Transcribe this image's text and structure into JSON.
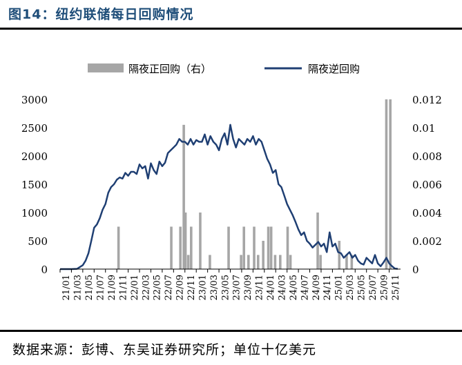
{
  "figure": {
    "title": "图14：纽约联储每日回购情况",
    "source": "数据来源：彭博、东吴证券研究所；单位十亿美元"
  },
  "chart_data": {
    "type": "bar+line",
    "legend": [
      {
        "label": "隔夜正回购（右）",
        "type": "bar",
        "color": "#a6a6a6"
      },
      {
        "label": "隔夜逆回购",
        "type": "line",
        "color": "#1f3f73"
      }
    ],
    "legend_position": "top",
    "x_ticks": [
      "21/01",
      "21/03",
      "21/05",
      "21/07",
      "21/09",
      "21/11",
      "22/01",
      "22/03",
      "22/05",
      "22/07",
      "22/09",
      "22/11",
      "23/01",
      "23/03",
      "23/05",
      "23/07",
      "23/09",
      "23/11",
      "24/01",
      "24/03",
      "24/05",
      "24/07",
      "24/09",
      "24/11",
      "25/01",
      "25/03",
      "25/05",
      "25/07",
      "25/09",
      "25/11"
    ],
    "y_left": {
      "min": 0,
      "max": 3000,
      "ticks": [
        0,
        500,
        1000,
        1500,
        2000,
        2500,
        3000
      ]
    },
    "y_right": {
      "min": 0,
      "max": 0.012,
      "ticks": [
        "0",
        "0.002",
        "0.004",
        "0.006",
        "0.008",
        "0.01",
        "0.012"
      ]
    },
    "grid": false,
    "series": [
      {
        "name": "隔夜逆回购",
        "axis": "left",
        "type": "line",
        "points": [
          [
            0,
            0
          ],
          [
            2,
            0
          ],
          [
            3,
            5
          ],
          [
            4,
            70
          ],
          [
            4.5,
            150
          ],
          [
            5,
            280
          ],
          [
            5.5,
            500
          ],
          [
            6,
            730
          ],
          [
            6.5,
            790
          ],
          [
            7,
            900
          ],
          [
            7.5,
            1050
          ],
          [
            8,
            1150
          ],
          [
            8.5,
            1350
          ],
          [
            9,
            1450
          ],
          [
            9.5,
            1500
          ],
          [
            10,
            1580
          ],
          [
            10.5,
            1620
          ],
          [
            11,
            1600
          ],
          [
            11.5,
            1700
          ],
          [
            12,
            1650
          ],
          [
            12.5,
            1720
          ],
          [
            13,
            1720
          ],
          [
            13.5,
            1680
          ],
          [
            14,
            1850
          ],
          [
            14.5,
            1780
          ],
          [
            15,
            1820
          ],
          [
            15.5,
            1600
          ],
          [
            16,
            1870
          ],
          [
            16.5,
            1750
          ],
          [
            17,
            1680
          ],
          [
            17.5,
            1900
          ],
          [
            18,
            1820
          ],
          [
            18.5,
            1880
          ],
          [
            19,
            2050
          ],
          [
            19.5,
            2100
          ],
          [
            20,
            2150
          ],
          [
            20.5,
            2200
          ],
          [
            21,
            2300
          ],
          [
            21.5,
            2250
          ],
          [
            22,
            2250
          ],
          [
            22.5,
            2200
          ],
          [
            23,
            2300
          ],
          [
            23.5,
            2200
          ],
          [
            24,
            2280
          ],
          [
            24.5,
            2250
          ],
          [
            25,
            2250
          ],
          [
            25.5,
            2380
          ],
          [
            26,
            2200
          ],
          [
            26.5,
            2350
          ],
          [
            27,
            2250
          ],
          [
            27.5,
            2200
          ],
          [
            28,
            2100
          ],
          [
            28.5,
            2300
          ],
          [
            29,
            2400
          ],
          [
            29.5,
            2200
          ],
          [
            30,
            2550
          ],
          [
            30.5,
            2300
          ],
          [
            31,
            2150
          ],
          [
            31.5,
            2300
          ],
          [
            32,
            2250
          ],
          [
            32.5,
            2200
          ],
          [
            33,
            2300
          ],
          [
            33.5,
            2250
          ],
          [
            34,
            2350
          ],
          [
            34.5,
            2200
          ],
          [
            35,
            2300
          ],
          [
            35.5,
            2250
          ],
          [
            36,
            2100
          ],
          [
            36.5,
            1950
          ],
          [
            37,
            1850
          ],
          [
            37.5,
            1700
          ],
          [
            38,
            1750
          ],
          [
            38.5,
            1500
          ],
          [
            39,
            1450
          ],
          [
            39.5,
            1300
          ],
          [
            40,
            1150
          ],
          [
            40.5,
            1050
          ],
          [
            41,
            950
          ],
          [
            41.5,
            830
          ],
          [
            42,
            700
          ],
          [
            42.5,
            600
          ],
          [
            43,
            650
          ],
          [
            43.5,
            500
          ],
          [
            44,
            450
          ],
          [
            44.5,
            380
          ],
          [
            45,
            430
          ],
          [
            45.5,
            480
          ],
          [
            46,
            400
          ],
          [
            46.5,
            450
          ],
          [
            47,
            300
          ],
          [
            47.5,
            650
          ],
          [
            48,
            400
          ],
          [
            48.5,
            450
          ],
          [
            49,
            300
          ],
          [
            49.5,
            280
          ],
          [
            50,
            200
          ],
          [
            50.5,
            250
          ],
          [
            51,
            300
          ],
          [
            51.5,
            200
          ],
          [
            52,
            250
          ],
          [
            52.5,
            150
          ],
          [
            53,
            100
          ],
          [
            53.5,
            80
          ],
          [
            54,
            200
          ],
          [
            54.5,
            150
          ],
          [
            55,
            100
          ],
          [
            55.5,
            250
          ],
          [
            56,
            100
          ],
          [
            56.5,
            50
          ],
          [
            57,
            120
          ],
          [
            57.5,
            200
          ],
          [
            58,
            100
          ],
          [
            58.5,
            50
          ],
          [
            59,
            10
          ],
          [
            59.5,
            5
          ]
        ]
      },
      {
        "name": "隔夜正回购（右）",
        "axis": "right",
        "type": "bar",
        "bars": [
          [
            10.3,
            0.003
          ],
          [
            19.6,
            0.003
          ],
          [
            21.2,
            0.003
          ],
          [
            21.8,
            0.0102
          ],
          [
            22.1,
            0.004
          ],
          [
            22.6,
            0.001
          ],
          [
            23.1,
            0.003
          ],
          [
            24.7,
            0.004
          ],
          [
            26.4,
            0.001
          ],
          [
            29.7,
            0.003
          ],
          [
            31.9,
            0.001
          ],
          [
            32.4,
            0.003
          ],
          [
            33.2,
            0.001
          ],
          [
            34.2,
            0.003
          ],
          [
            34.9,
            0.001
          ],
          [
            35.8,
            0.002
          ],
          [
            36.7,
            0.003
          ],
          [
            37.2,
            0.003
          ],
          [
            37.9,
            0.001
          ],
          [
            38.8,
            0.001
          ],
          [
            40.1,
            0.003
          ],
          [
            40.6,
            0.001
          ],
          [
            45.4,
            0.004
          ],
          [
            45.9,
            0.001
          ],
          [
            49.2,
            0.002
          ],
          [
            50.5,
            0.001
          ],
          [
            51.4,
            0.001
          ],
          [
            57.5,
            0.012
          ],
          [
            58.2,
            0.012
          ]
        ]
      }
    ]
  }
}
